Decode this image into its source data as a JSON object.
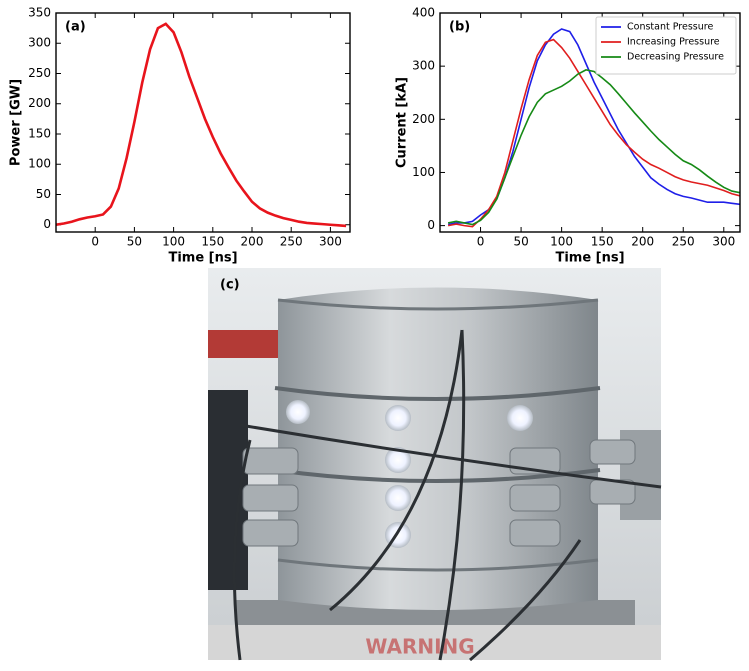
{
  "chart_data": [
    {
      "type": "line",
      "label": "(a)",
      "x_label": "Time [ns]",
      "y_label": "Power [GW]",
      "x": [
        -50,
        -40,
        -30,
        -20,
        -10,
        0,
        10,
        20,
        30,
        40,
        50,
        60,
        70,
        80,
        90,
        100,
        110,
        120,
        130,
        140,
        150,
        160,
        170,
        180,
        190,
        200,
        210,
        220,
        230,
        240,
        250,
        260,
        270,
        280,
        290,
        300,
        310,
        320
      ],
      "series": [
        {
          "color": "#e8141c",
          "values": [
            0,
            2,
            5,
            9,
            12,
            14,
            17,
            30,
            60,
            110,
            170,
            235,
            290,
            325,
            332,
            318,
            285,
            245,
            210,
            175,
            145,
            118,
            95,
            73,
            55,
            38,
            27,
            20,
            15,
            11,
            8,
            5,
            3,
            2,
            1,
            0,
            -1,
            -2
          ]
        }
      ],
      "xlim": [
        -50,
        325
      ],
      "ylim": [
        -12,
        350
      ],
      "xticks": [
        0,
        50,
        100,
        150,
        200,
        250,
        300
      ],
      "yticks": [
        0,
        50,
        100,
        150,
        200,
        250,
        300,
        350
      ]
    },
    {
      "type": "line",
      "label": "(b)",
      "x_label": "Time [ns]",
      "y_label": "Current [kA]",
      "legend": "upper right",
      "x": [
        -40,
        -30,
        -20,
        -10,
        0,
        10,
        20,
        30,
        40,
        50,
        60,
        70,
        80,
        90,
        100,
        110,
        120,
        130,
        140,
        150,
        160,
        170,
        180,
        190,
        200,
        210,
        220,
        230,
        240,
        250,
        260,
        270,
        280,
        290,
        300,
        310,
        320
      ],
      "series": [
        {
          "name": "Constant Pressure",
          "color": "#1f1fe8",
          "values": [
            2,
            5,
            5,
            8,
            20,
            30,
            50,
            90,
            140,
            200,
            260,
            310,
            340,
            360,
            370,
            365,
            340,
            305,
            270,
            240,
            210,
            180,
            155,
            130,
            110,
            90,
            78,
            68,
            60,
            55,
            52,
            48,
            44,
            44,
            44,
            42,
            40
          ]
        },
        {
          "name": "Increasing Pressure",
          "color": "#e01e1e",
          "values": [
            0,
            3,
            0,
            -2,
            12,
            30,
            55,
            100,
            160,
            220,
            275,
            320,
            345,
            350,
            335,
            315,
            290,
            265,
            240,
            215,
            190,
            170,
            152,
            138,
            125,
            115,
            108,
            100,
            92,
            86,
            82,
            79,
            76,
            71,
            66,
            60,
            56
          ]
        },
        {
          "name": "Decreasing Pressure",
          "color": "#168a16",
          "values": [
            5,
            8,
            5,
            2,
            10,
            25,
            50,
            90,
            130,
            170,
            205,
            232,
            248,
            255,
            262,
            272,
            285,
            293,
            290,
            278,
            265,
            248,
            230,
            212,
            195,
            178,
            162,
            148,
            134,
            122,
            115,
            105,
            93,
            82,
            72,
            65,
            62
          ]
        }
      ],
      "xlim": [
        -50,
        320
      ],
      "ylim": [
        -12,
        400
      ],
      "xticks": [
        0,
        50,
        100,
        150,
        200,
        250,
        300
      ],
      "yticks": [
        0,
        100,
        200,
        300,
        400
      ]
    }
  ],
  "photo": {
    "label": "(c)",
    "sign": "WARNING"
  }
}
